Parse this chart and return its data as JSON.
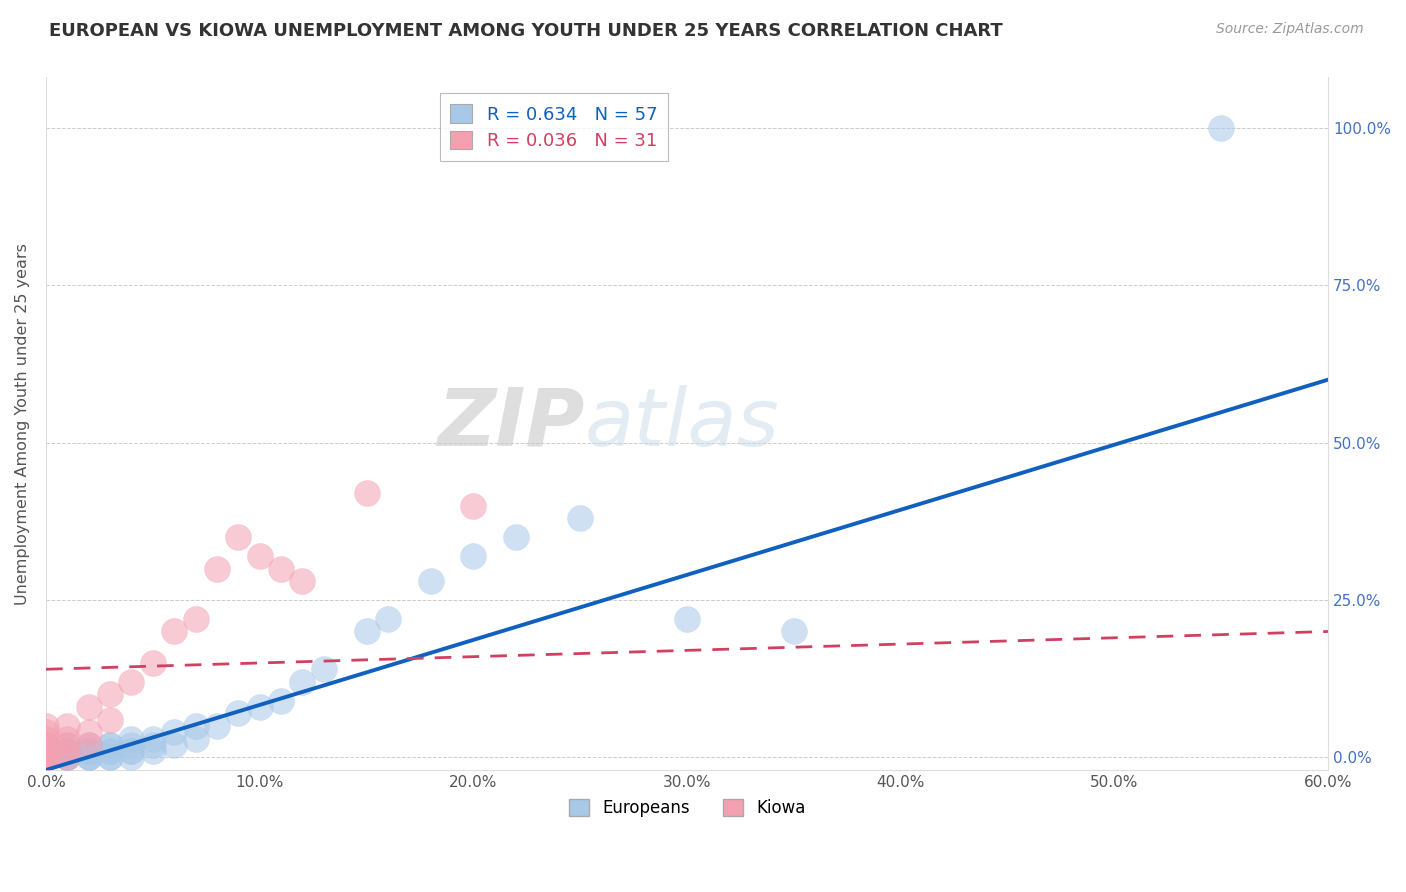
{
  "title": "EUROPEAN VS KIOWA UNEMPLOYMENT AMONG YOUTH UNDER 25 YEARS CORRELATION CHART",
  "source": "Source: ZipAtlas.com",
  "xlabel_ticks": [
    "0.0%",
    "10.0%",
    "20.0%",
    "30.0%",
    "40.0%",
    "50.0%",
    "60.0%"
  ],
  "ylabel_right_ticks": [
    "0.0%",
    "25.0%",
    "50.0%",
    "75.0%",
    "100.0%"
  ],
  "xlim": [
    0.0,
    0.6
  ],
  "ylim": [
    -0.02,
    1.08
  ],
  "european_R": 0.634,
  "european_N": 57,
  "kiowa_R": 0.036,
  "kiowa_N": 31,
  "european_color": "#a8c8e8",
  "kiowa_color": "#f4a0b0",
  "european_line_color": "#1060c0",
  "kiowa_line_color": "#d04060",
  "watermark": "ZIPatlas",
  "legend_labels": [
    "Europeans",
    "Kiowa"
  ],
  "european_x": [
    0.0,
    0.0,
    0.0,
    0.0,
    0.0,
    0.0,
    0.0,
    0.0,
    0.0,
    0.0,
    0.01,
    0.01,
    0.01,
    0.01,
    0.01,
    0.01,
    0.01,
    0.01,
    0.02,
    0.02,
    0.02,
    0.02,
    0.02,
    0.02,
    0.03,
    0.03,
    0.03,
    0.03,
    0.03,
    0.03,
    0.04,
    0.04,
    0.04,
    0.04,
    0.04,
    0.05,
    0.05,
    0.05,
    0.06,
    0.06,
    0.07,
    0.07,
    0.08,
    0.09,
    0.1,
    0.11,
    0.12,
    0.13,
    0.15,
    0.16,
    0.18,
    0.2,
    0.22,
    0.25,
    0.3,
    0.35,
    0.55
  ],
  "european_y": [
    0.0,
    0.0,
    0.0,
    0.0,
    0.0,
    0.0,
    0.0,
    0.0,
    0.01,
    0.02,
    0.0,
    0.0,
    0.0,
    0.0,
    0.0,
    0.01,
    0.01,
    0.02,
    0.0,
    0.0,
    0.0,
    0.01,
    0.01,
    0.02,
    0.0,
    0.0,
    0.01,
    0.01,
    0.02,
    0.02,
    0.0,
    0.01,
    0.01,
    0.02,
    0.03,
    0.01,
    0.02,
    0.03,
    0.02,
    0.04,
    0.03,
    0.05,
    0.05,
    0.07,
    0.08,
    0.09,
    0.12,
    0.14,
    0.2,
    0.22,
    0.28,
    0.32,
    0.35,
    0.38,
    0.22,
    0.2,
    1.0
  ],
  "kiowa_x": [
    0.0,
    0.0,
    0.0,
    0.0,
    0.0,
    0.0,
    0.0,
    0.0,
    0.0,
    0.0,
    0.01,
    0.01,
    0.01,
    0.01,
    0.01,
    0.02,
    0.02,
    0.02,
    0.03,
    0.03,
    0.04,
    0.05,
    0.06,
    0.07,
    0.08,
    0.09,
    0.1,
    0.11,
    0.12,
    0.15,
    0.2
  ],
  "kiowa_y": [
    0.0,
    0.0,
    0.0,
    0.0,
    0.0,
    0.01,
    0.02,
    0.03,
    0.04,
    0.05,
    0.0,
    0.01,
    0.02,
    0.03,
    0.05,
    0.02,
    0.04,
    0.08,
    0.06,
    0.1,
    0.12,
    0.15,
    0.2,
    0.22,
    0.3,
    0.35,
    0.32,
    0.3,
    0.28,
    0.42,
    0.4
  ],
  "eu_trend_x0": 0.0,
  "eu_trend_y0": -0.02,
  "eu_trend_x1": 0.6,
  "eu_trend_y1": 0.6,
  "ki_trend_x0": 0.0,
  "ki_trend_y0": 0.14,
  "ki_trend_x1": 0.6,
  "ki_trend_y1": 0.2
}
